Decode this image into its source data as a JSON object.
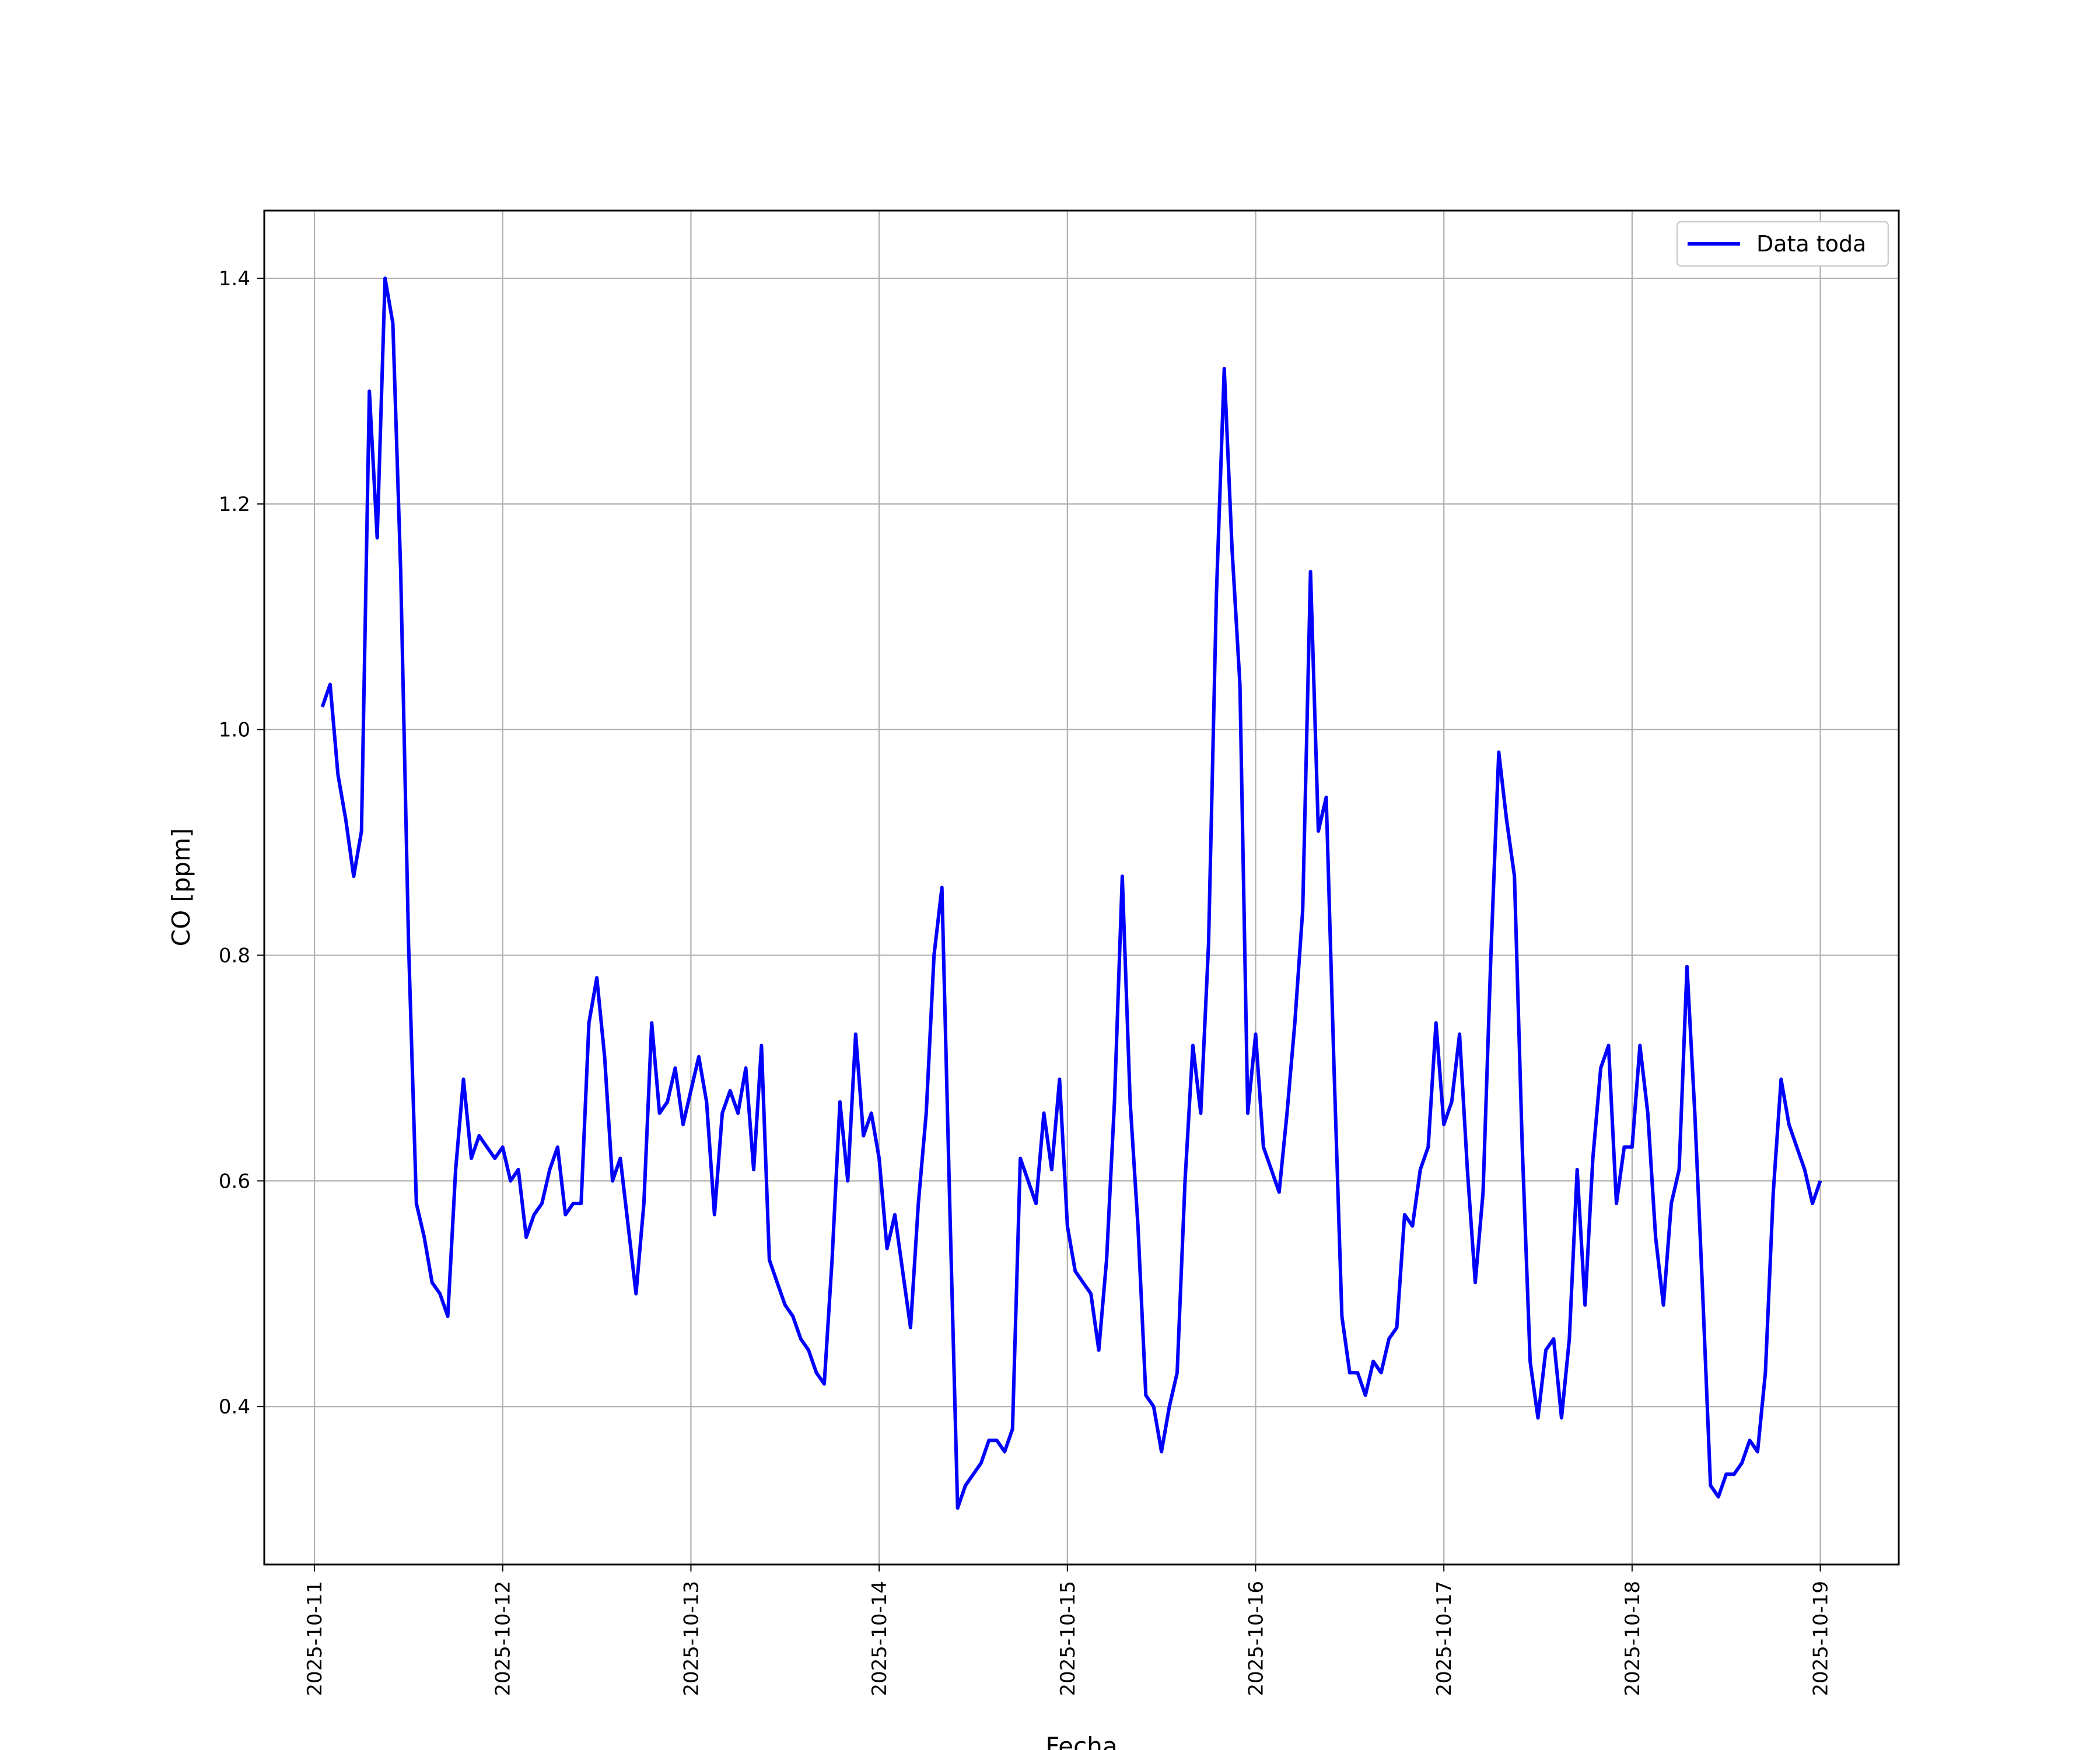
{
  "chart_data": {
    "type": "line",
    "xlabel": "Fecha",
    "ylabel": "CO [ppm]",
    "x_ticks": [
      "2025-10-11",
      "2025-10-12",
      "2025-10-13",
      "2025-10-14",
      "2025-10-15",
      "2025-10-16",
      "2025-10-17",
      "2025-10-18",
      "2025-10-19"
    ],
    "y_ticks": [
      "0.4",
      "0.6",
      "0.8",
      "1.0",
      "1.2",
      "1.4"
    ],
    "xlim": [
      "2025-10-10 17:36",
      "2025-10-19 10:00"
    ],
    "ylim": [
      0.26,
      1.46
    ],
    "grid": true,
    "legend_position": "top-right",
    "colors": {
      "series": "#0000ff",
      "grid": "#b0b0b0"
    },
    "series": [
      {
        "name": "Data toda",
        "x": [
          "2025-10-11 01:00",
          "2025-10-11 02:00",
          "2025-10-11 03:00",
          "2025-10-11 04:00",
          "2025-10-11 05:00",
          "2025-10-11 06:00",
          "2025-10-11 07:00",
          "2025-10-11 08:00",
          "2025-10-11 09:00",
          "2025-10-11 10:00",
          "2025-10-11 11:00",
          "2025-10-11 12:00",
          "2025-10-11 13:00",
          "2025-10-11 14:00",
          "2025-10-11 15:00",
          "2025-10-11 16:00",
          "2025-10-11 17:00",
          "2025-10-11 18:00",
          "2025-10-11 19:00",
          "2025-10-11 20:00",
          "2025-10-11 21:00",
          "2025-10-11 22:00",
          "2025-10-11 23:00",
          "2025-10-12 00:00",
          "2025-10-12 01:00",
          "2025-10-12 02:00",
          "2025-10-12 03:00",
          "2025-10-12 04:00",
          "2025-10-12 05:00",
          "2025-10-12 06:00",
          "2025-10-12 07:00",
          "2025-10-12 08:00",
          "2025-10-12 09:00",
          "2025-10-12 10:00",
          "2025-10-12 11:00",
          "2025-10-12 12:00",
          "2025-10-12 13:00",
          "2025-10-12 14:00",
          "2025-10-12 15:00",
          "2025-10-12 16:00",
          "2025-10-12 17:00",
          "2025-10-12 18:00",
          "2025-10-12 19:00",
          "2025-10-12 20:00",
          "2025-10-12 21:00",
          "2025-10-12 22:00",
          "2025-10-12 23:00",
          "2025-10-13 00:00",
          "2025-10-13 01:00",
          "2025-10-13 02:00",
          "2025-10-13 03:00",
          "2025-10-13 04:00",
          "2025-10-13 05:00",
          "2025-10-13 06:00",
          "2025-10-13 07:00",
          "2025-10-13 08:00",
          "2025-10-13 09:00",
          "2025-10-13 10:00",
          "2025-10-13 11:00",
          "2025-10-13 12:00",
          "2025-10-13 13:00",
          "2025-10-13 14:00",
          "2025-10-13 15:00",
          "2025-10-13 16:00",
          "2025-10-13 17:00",
          "2025-10-13 18:00",
          "2025-10-13 19:00",
          "2025-10-13 20:00",
          "2025-10-13 21:00",
          "2025-10-13 22:00",
          "2025-10-13 23:00",
          "2025-10-14 00:00",
          "2025-10-14 01:00",
          "2025-10-14 02:00",
          "2025-10-14 03:00",
          "2025-10-14 04:00",
          "2025-10-14 05:00",
          "2025-10-14 06:00",
          "2025-10-14 07:00",
          "2025-10-14 08:00",
          "2025-10-14 09:00",
          "2025-10-14 10:00",
          "2025-10-14 11:00",
          "2025-10-14 12:00",
          "2025-10-14 13:00",
          "2025-10-14 14:00",
          "2025-10-14 15:00",
          "2025-10-14 16:00",
          "2025-10-14 17:00",
          "2025-10-14 18:00",
          "2025-10-14 19:00",
          "2025-10-14 20:00",
          "2025-10-14 21:00",
          "2025-10-14 22:00",
          "2025-10-14 23:00",
          "2025-10-15 00:00",
          "2025-10-15 01:00",
          "2025-10-15 02:00",
          "2025-10-15 03:00",
          "2025-10-15 04:00",
          "2025-10-15 05:00",
          "2025-10-15 06:00",
          "2025-10-15 07:00",
          "2025-10-15 08:00",
          "2025-10-15 09:00",
          "2025-10-15 10:00",
          "2025-10-15 11:00",
          "2025-10-15 12:00",
          "2025-10-15 13:00",
          "2025-10-15 14:00",
          "2025-10-15 15:00",
          "2025-10-15 16:00",
          "2025-10-15 17:00",
          "2025-10-15 18:00",
          "2025-10-15 19:00",
          "2025-10-15 20:00",
          "2025-10-15 21:00",
          "2025-10-15 22:00",
          "2025-10-15 23:00",
          "2025-10-16 00:00",
          "2025-10-16 01:00",
          "2025-10-16 02:00",
          "2025-10-16 03:00",
          "2025-10-16 04:00",
          "2025-10-16 05:00",
          "2025-10-16 06:00",
          "2025-10-16 07:00",
          "2025-10-16 08:00",
          "2025-10-16 09:00",
          "2025-10-16 10:00",
          "2025-10-16 11:00",
          "2025-10-16 12:00",
          "2025-10-16 13:00",
          "2025-10-16 14:00",
          "2025-10-16 15:00",
          "2025-10-16 16:00",
          "2025-10-16 17:00",
          "2025-10-16 18:00",
          "2025-10-16 19:00",
          "2025-10-16 20:00",
          "2025-10-16 21:00",
          "2025-10-16 22:00",
          "2025-10-16 23:00",
          "2025-10-17 00:00",
          "2025-10-17 01:00",
          "2025-10-17 02:00",
          "2025-10-17 03:00",
          "2025-10-17 04:00",
          "2025-10-17 05:00",
          "2025-10-17 06:00",
          "2025-10-17 07:00",
          "2025-10-17 08:00",
          "2025-10-17 09:00",
          "2025-10-17 10:00",
          "2025-10-17 11:00",
          "2025-10-17 12:00",
          "2025-10-17 13:00",
          "2025-10-17 14:00",
          "2025-10-17 15:00",
          "2025-10-17 16:00",
          "2025-10-17 17:00",
          "2025-10-17 18:00",
          "2025-10-17 19:00",
          "2025-10-17 20:00",
          "2025-10-17 21:00",
          "2025-10-17 22:00",
          "2025-10-17 23:00",
          "2025-10-18 00:00",
          "2025-10-18 01:00",
          "2025-10-18 02:00",
          "2025-10-18 03:00",
          "2025-10-18 04:00",
          "2025-10-18 05:00",
          "2025-10-18 06:00",
          "2025-10-18 07:00",
          "2025-10-18 08:00",
          "2025-10-18 09:00",
          "2025-10-18 10:00",
          "2025-10-18 11:00",
          "2025-10-18 12:00",
          "2025-10-18 13:00",
          "2025-10-18 14:00",
          "2025-10-18 15:00",
          "2025-10-18 16:00",
          "2025-10-18 17:00",
          "2025-10-18 18:00",
          "2025-10-18 19:00",
          "2025-10-18 20:00",
          "2025-10-18 21:00",
          "2025-10-18 22:00",
          "2025-10-18 23:00",
          "2025-10-19 00:00"
        ],
        "values": [
          1.02,
          1.04,
          0.96,
          0.92,
          0.87,
          0.91,
          1.3,
          1.17,
          1.4,
          1.36,
          1.14,
          0.81,
          0.58,
          0.55,
          0.51,
          0.5,
          0.48,
          0.61,
          0.69,
          0.62,
          0.64,
          0.63,
          0.62,
          0.63,
          0.6,
          0.61,
          0.55,
          0.57,
          0.58,
          0.61,
          0.63,
          0.57,
          0.58,
          0.58,
          0.74,
          0.78,
          0.71,
          0.6,
          0.62,
          0.56,
          0.5,
          0.58,
          0.74,
          0.66,
          0.67,
          0.7,
          0.65,
          0.68,
          0.71,
          0.67,
          0.57,
          0.66,
          0.68,
          0.66,
          0.7,
          0.61,
          0.72,
          0.53,
          0.51,
          0.49,
          0.48,
          0.46,
          0.45,
          0.43,
          0.42,
          0.53,
          0.67,
          0.6,
          0.73,
          0.64,
          0.66,
          0.62,
          0.54,
          0.57,
          0.52,
          0.47,
          0.58,
          0.66,
          0.8,
          0.86,
          0.58,
          0.31,
          0.33,
          0.34,
          0.35,
          0.37,
          0.37,
          0.36,
          0.38,
          0.62,
          0.6,
          0.58,
          0.66,
          0.61,
          0.69,
          0.56,
          0.52,
          0.51,
          0.5,
          0.45,
          0.53,
          0.67,
          0.87,
          0.67,
          0.56,
          0.41,
          0.4,
          0.36,
          0.4,
          0.43,
          0.6,
          0.72,
          0.66,
          0.81,
          1.12,
          1.32,
          1.16,
          1.04,
          0.66,
          0.73,
          0.63,
          0.61,
          0.59,
          0.66,
          0.74,
          0.84,
          1.14,
          0.91,
          0.94,
          0.7,
          0.48,
          0.43,
          0.43,
          0.41,
          0.44,
          0.43,
          0.46,
          0.47,
          0.57,
          0.56,
          0.61,
          0.63,
          0.74,
          0.65,
          0.67,
          0.73,
          0.61,
          0.51,
          0.59,
          0.8,
          0.98,
          0.92,
          0.87,
          0.63,
          0.44,
          0.39,
          0.45,
          0.46,
          0.39,
          0.46,
          0.61,
          0.49,
          0.62,
          0.7,
          0.72,
          0.58,
          0.63,
          0.63,
          0.72,
          0.66,
          0.55,
          0.49,
          0.58,
          0.61,
          0.79,
          0.66,
          0.5,
          0.33,
          0.32,
          0.34,
          0.34,
          0.35,
          0.37,
          0.36,
          0.43,
          0.59,
          0.69,
          0.65,
          0.63,
          0.61,
          0.58,
          0.6
        ]
      }
    ]
  }
}
